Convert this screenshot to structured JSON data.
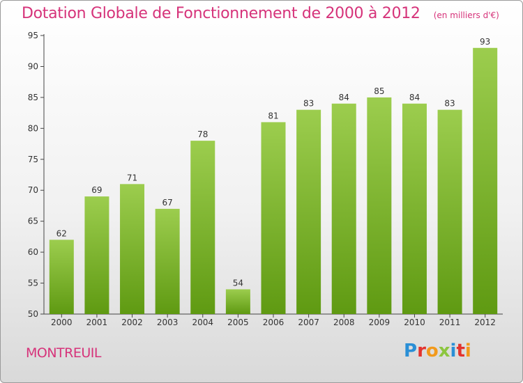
{
  "chart_data": {
    "type": "bar",
    "title": "Dotation Globale de Fonctionnement de 2000 à 2012",
    "subtitle": "(en milliers d'€)",
    "categories": [
      "2000",
      "2001",
      "2002",
      "2003",
      "2004",
      "2005",
      "2006",
      "2007",
      "2008",
      "2009",
      "2010",
      "2011",
      "2012"
    ],
    "values": [
      62,
      69,
      71,
      67,
      78,
      54,
      81,
      83,
      84,
      85,
      84,
      83,
      93
    ],
    "yticks": [
      50,
      55,
      60,
      65,
      70,
      75,
      80,
      85,
      90,
      95
    ],
    "ylim": [
      50,
      95
    ],
    "grid": false,
    "colors": {
      "bar_top": "#9ccd4e",
      "bar_bottom": "#5f9a12",
      "title": "#d6337a",
      "axis": "#444444"
    }
  },
  "footer": {
    "city": "MONTREUIL",
    "brand": "Proxiti",
    "brand_colors": [
      "#2a8fd6",
      "#e3342f",
      "#f29a1c",
      "#8cc63f",
      "#2a8fd6",
      "#e3342f",
      "#f29a1c"
    ]
  }
}
